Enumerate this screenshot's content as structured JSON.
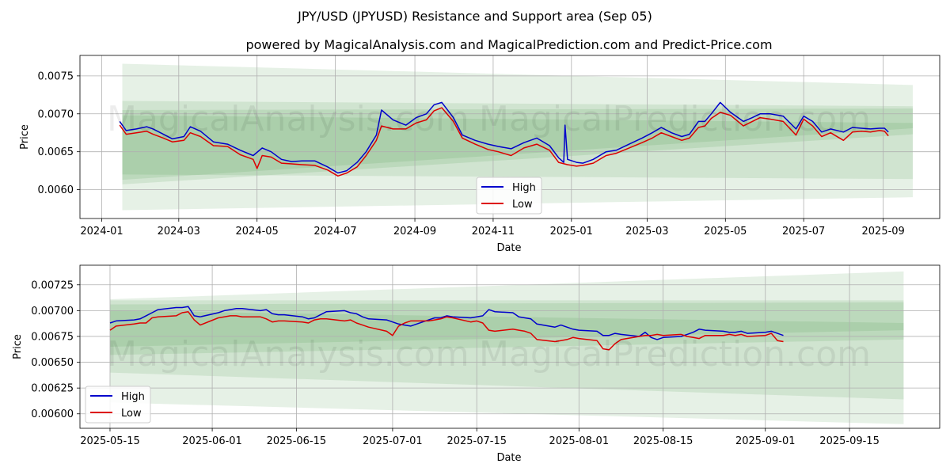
{
  "title": "JPY/USD (JPYUSD) Resistance and Support area (Sep 05)",
  "subtitle": "powered by MagicalAnalysis.com and MagicalPrediction.com and Predict-Price.com",
  "watermarks": [
    "MagicalAnalysis.com",
    "MagicalPrediction.com"
  ],
  "colors": {
    "high": "#0000cc",
    "low": "#dd0000",
    "band": "#2e8b2e"
  },
  "chart_data": [
    {
      "type": "line",
      "name": "top-chart",
      "xlabel": "Date",
      "ylabel": "Price",
      "x_ticks": [
        "2024-01",
        "2024-03",
        "2024-05",
        "2024-07",
        "2024-09",
        "2024-11",
        "2025-01",
        "2025-03",
        "2025-05",
        "2025-07",
        "2025-09"
      ],
      "y_ticks": [
        "0.0060",
        "0.0065",
        "0.0070",
        "0.0075"
      ],
      "xlim": [
        "2023-12-15",
        "2025-10-15"
      ],
      "ylim": [
        0.00562,
        0.00777
      ],
      "legend": {
        "position": "center-bottom",
        "entries": [
          "High",
          "Low"
        ]
      },
      "grid": true,
      "bands": [
        {
          "start": "2024-01-17",
          "end": "2025-09-24",
          "upper": [
            0.00766,
            0.00738
          ],
          "lower": [
            0.00573,
            0.0059
          ]
        },
        {
          "start": "2024-01-17",
          "end": "2025-09-24",
          "upper": [
            0.00717,
            0.0071
          ],
          "lower": [
            0.0062,
            0.00614
          ]
        },
        {
          "start": "2024-01-17",
          "end": "2025-09-24",
          "upper": [
            0.00705,
            0.00707
          ],
          "lower": [
            0.00607,
            0.00673
          ]
        },
        {
          "start": "2024-01-17",
          "end": "2025-09-24",
          "upper": [
            0.00698,
            0.00688
          ],
          "lower": [
            0.00613,
            0.00681
          ]
        }
      ],
      "series": [
        {
          "name": "High",
          "dates": [
            "2024-01-15",
            "2024-01-20",
            "2024-01-28",
            "2024-02-05",
            "2024-02-10",
            "2024-02-18",
            "2024-02-25",
            "2024-03-05",
            "2024-03-10",
            "2024-03-18",
            "2024-03-28",
            "2024-04-08",
            "2024-04-18",
            "2024-04-28",
            "2024-05-05",
            "2024-05-12",
            "2024-05-20",
            "2024-05-28",
            "2024-06-05",
            "2024-06-15",
            "2024-06-25",
            "2024-07-03",
            "2024-07-10",
            "2024-07-18",
            "2024-07-25",
            "2024-08-02",
            "2024-08-06",
            "2024-08-15",
            "2024-08-25",
            "2024-09-02",
            "2024-09-10",
            "2024-09-16",
            "2024-09-22",
            "2024-10-01",
            "2024-10-08",
            "2024-10-18",
            "2024-10-28",
            "2024-11-05",
            "2024-11-15",
            "2024-11-25",
            "2024-12-05",
            "2024-12-15",
            "2024-12-22",
            "2024-12-26",
            "2024-12-27",
            "2024-12-29",
            "2025-01-05",
            "2025-01-10",
            "2025-01-18",
            "2025-01-28",
            "2025-02-05",
            "2025-02-15",
            "2025-02-25",
            "2025-03-05",
            "2025-03-12",
            "2025-03-20",
            "2025-03-28",
            "2025-04-03",
            "2025-04-10",
            "2025-04-15",
            "2025-04-20",
            "2025-04-27",
            "2025-05-05",
            "2025-05-15",
            "2025-05-22",
            "2025-05-28",
            "2025-06-05",
            "2025-06-15",
            "2025-06-25",
            "2025-07-01",
            "2025-07-08",
            "2025-07-15",
            "2025-07-22",
            "2025-08-01",
            "2025-08-08",
            "2025-08-15",
            "2025-08-22",
            "2025-08-29",
            "2025-09-02",
            "2025-09-05"
          ],
          "values": [
            0.0069,
            0.00678,
            0.0068,
            0.00683,
            0.0068,
            0.00673,
            0.00667,
            0.0067,
            0.00683,
            0.00677,
            0.00663,
            0.0066,
            0.00652,
            0.00645,
            0.00655,
            0.0065,
            0.0064,
            0.00637,
            0.00638,
            0.00638,
            0.0063,
            0.00622,
            0.00625,
            0.00636,
            0.0065,
            0.00672,
            0.00705,
            0.00692,
            0.00685,
            0.00695,
            0.007,
            0.00712,
            0.00715,
            0.00695,
            0.00672,
            0.00665,
            0.0066,
            0.00657,
            0.00654,
            0.00662,
            0.00668,
            0.00658,
            0.00642,
            0.00636,
            0.00685,
            0.0064,
            0.00636,
            0.00635,
            0.0064,
            0.0065,
            0.00652,
            0.0066,
            0.00668,
            0.00675,
            0.00682,
            0.00675,
            0.0067,
            0.00673,
            0.0069,
            0.0069,
            0.007,
            0.00715,
            0.00702,
            0.0069,
            0.00695,
            0.007,
            0.007,
            0.00697,
            0.0068,
            0.00697,
            0.0069,
            0.00676,
            0.0068,
            0.00676,
            0.00682,
            0.00681,
            0.0068,
            0.00681,
            0.00681,
            0.00676
          ]
        },
        {
          "name": "Low",
          "dates": [
            "2024-01-15",
            "2024-01-20",
            "2024-01-28",
            "2024-02-05",
            "2024-02-10",
            "2024-02-18",
            "2024-02-25",
            "2024-03-05",
            "2024-03-10",
            "2024-03-18",
            "2024-03-28",
            "2024-04-08",
            "2024-04-18",
            "2024-04-28",
            "2024-05-01",
            "2024-05-05",
            "2024-05-12",
            "2024-05-20",
            "2024-05-28",
            "2024-06-05",
            "2024-06-15",
            "2024-06-25",
            "2024-07-03",
            "2024-07-10",
            "2024-07-18",
            "2024-07-25",
            "2024-08-02",
            "2024-08-06",
            "2024-08-15",
            "2024-08-25",
            "2024-09-02",
            "2024-09-10",
            "2024-09-16",
            "2024-09-22",
            "2024-10-01",
            "2024-10-08",
            "2024-10-18",
            "2024-10-28",
            "2024-11-05",
            "2024-11-15",
            "2024-11-25",
            "2024-12-05",
            "2024-12-15",
            "2024-12-22",
            "2024-12-29",
            "2025-01-05",
            "2025-01-10",
            "2025-01-18",
            "2025-01-28",
            "2025-02-05",
            "2025-02-15",
            "2025-02-25",
            "2025-03-05",
            "2025-03-12",
            "2025-03-20",
            "2025-03-28",
            "2025-04-03",
            "2025-04-10",
            "2025-04-15",
            "2025-04-20",
            "2025-04-27",
            "2025-05-05",
            "2025-05-15",
            "2025-05-22",
            "2025-05-28",
            "2025-06-05",
            "2025-06-15",
            "2025-06-25",
            "2025-07-01",
            "2025-07-08",
            "2025-07-15",
            "2025-07-22",
            "2025-08-01",
            "2025-08-08",
            "2025-08-15",
            "2025-08-22",
            "2025-08-29",
            "2025-09-02",
            "2025-09-05"
          ],
          "values": [
            0.00685,
            0.00673,
            0.00675,
            0.00677,
            0.00673,
            0.00668,
            0.00663,
            0.00665,
            0.00675,
            0.0067,
            0.00658,
            0.00657,
            0.00646,
            0.0064,
            0.00628,
            0.00645,
            0.00643,
            0.00635,
            0.00634,
            0.00633,
            0.00632,
            0.00626,
            0.00618,
            0.00622,
            0.0063,
            0.00645,
            0.00665,
            0.00684,
            0.0068,
            0.0068,
            0.00688,
            0.00692,
            0.00704,
            0.00708,
            0.0069,
            0.00668,
            0.0066,
            0.00653,
            0.0065,
            0.00645,
            0.00655,
            0.0066,
            0.00652,
            0.00636,
            0.00633,
            0.00631,
            0.00632,
            0.00635,
            0.00645,
            0.00648,
            0.00655,
            0.00662,
            0.00668,
            0.00675,
            0.0067,
            0.00665,
            0.00668,
            0.00682,
            0.00684,
            0.00694,
            0.00702,
            0.00698,
            0.00684,
            0.0069,
            0.00695,
            0.00693,
            0.0069,
            0.00672,
            0.00693,
            0.00684,
            0.0067,
            0.00675,
            0.00665,
            0.00676,
            0.00677,
            0.00676,
            0.00678,
            0.00677,
            0.00671
          ]
        }
      ]
    },
    {
      "type": "line",
      "name": "bottom-chart",
      "xlabel": "Date",
      "ylabel": "Price",
      "x_ticks": [
        "2025-05-15",
        "2025-06-01",
        "2025-06-15",
        "2025-07-01",
        "2025-07-15",
        "2025-08-01",
        "2025-08-15",
        "2025-09-01",
        "2025-09-15"
      ],
      "y_ticks": [
        "0.00600",
        "0.00625",
        "0.00650",
        "0.00675",
        "0.00700",
        "0.00725"
      ],
      "xlim": [
        "2025-05-10",
        "2025-09-30"
      ],
      "ylim": [
        0.00586,
        0.00744
      ],
      "legend": {
        "position": "lower-left",
        "entries": [
          "High",
          "Low"
        ]
      },
      "grid": true,
      "bands": [
        {
          "start": "2025-05-15",
          "end": "2025-09-24",
          "upper": [
            0.00711,
            0.00738
          ],
          "lower": [
            0.00611,
            0.0059
          ]
        },
        {
          "start": "2025-05-15",
          "end": "2025-09-24",
          "upper": [
            0.0071,
            0.0071
          ],
          "lower": [
            0.0064,
            0.00614
          ]
        },
        {
          "start": "2025-05-15",
          "end": "2025-09-24",
          "upper": [
            0.00706,
            0.00708
          ],
          "lower": [
            0.00657,
            0.00672
          ]
        },
        {
          "start": "2025-05-15",
          "end": "2025-09-24",
          "upper": [
            0.007,
            0.00688
          ],
          "lower": [
            0.00665,
            0.00681
          ]
        }
      ],
      "series": [
        {
          "name": "High",
          "dates": [
            "2025-05-15",
            "2025-05-16",
            "2025-05-19",
            "2025-05-20",
            "2025-05-21",
            "2025-05-22",
            "2025-05-23",
            "2025-05-26",
            "2025-05-27",
            "2025-05-28",
            "2025-05-29",
            "2025-05-30",
            "2025-06-02",
            "2025-06-03",
            "2025-06-04",
            "2025-06-05",
            "2025-06-06",
            "2025-06-09",
            "2025-06-10",
            "2025-06-11",
            "2025-06-12",
            "2025-06-13",
            "2025-06-16",
            "2025-06-17",
            "2025-06-18",
            "2025-06-19",
            "2025-06-20",
            "2025-06-23",
            "2025-06-24",
            "2025-06-25",
            "2025-06-26",
            "2025-06-27",
            "2025-06-30",
            "2025-07-01",
            "2025-07-02",
            "2025-07-03",
            "2025-07-04",
            "2025-07-07",
            "2025-07-08",
            "2025-07-09",
            "2025-07-10",
            "2025-07-11",
            "2025-07-14",
            "2025-07-15",
            "2025-07-16",
            "2025-07-17",
            "2025-07-18",
            "2025-07-21",
            "2025-07-22",
            "2025-07-23",
            "2025-07-24",
            "2025-07-25",
            "2025-07-28",
            "2025-07-29",
            "2025-07-30",
            "2025-07-31",
            "2025-08-01",
            "2025-08-04",
            "2025-08-05",
            "2025-08-06",
            "2025-08-07",
            "2025-08-08",
            "2025-08-11",
            "2025-08-12",
            "2025-08-13",
            "2025-08-14",
            "2025-08-15",
            "2025-08-18",
            "2025-08-19",
            "2025-08-20",
            "2025-08-21",
            "2025-08-22",
            "2025-08-25",
            "2025-08-26",
            "2025-08-27",
            "2025-08-28",
            "2025-08-29",
            "2025-09-01",
            "2025-09-02",
            "2025-09-03",
            "2025-09-04"
          ],
          "values": [
            0.00688,
            0.0069,
            0.00691,
            0.00692,
            0.00695,
            0.00698,
            0.00701,
            0.00703,
            0.00703,
            0.00704,
            0.00695,
            0.00694,
            0.00698,
            0.007,
            0.00701,
            0.00702,
            0.00702,
            0.007,
            0.00701,
            0.00697,
            0.00696,
            0.00696,
            0.00694,
            0.00692,
            0.00693,
            0.00696,
            0.00699,
            0.007,
            0.00698,
            0.00697,
            0.00694,
            0.00692,
            0.00691,
            0.00689,
            0.00687,
            0.00686,
            0.00685,
            0.00691,
            0.00693,
            0.00693,
            0.00695,
            0.00694,
            0.00693,
            0.00694,
            0.00695,
            0.00701,
            0.00699,
            0.00698,
            0.00694,
            0.00693,
            0.00692,
            0.00687,
            0.00684,
            0.00686,
            0.00684,
            0.00682,
            0.00681,
            0.0068,
            0.00676,
            0.00676,
            0.00678,
            0.00677,
            0.00675,
            0.00679,
            0.00674,
            0.00672,
            0.00674,
            0.00675,
            0.00677,
            0.00679,
            0.00682,
            0.00681,
            0.0068,
            0.00679,
            0.00679,
            0.0068,
            0.00678,
            0.00679,
            0.0068,
            0.00678,
            0.00676
          ]
        },
        {
          "name": "Low",
          "dates": [
            "2025-05-15",
            "2025-05-16",
            "2025-05-19",
            "2025-05-20",
            "2025-05-21",
            "2025-05-22",
            "2025-05-23",
            "2025-05-26",
            "2025-05-27",
            "2025-05-28",
            "2025-05-29",
            "2025-05-30",
            "2025-06-02",
            "2025-06-03",
            "2025-06-04",
            "2025-06-05",
            "2025-06-06",
            "2025-06-09",
            "2025-06-10",
            "2025-06-11",
            "2025-06-12",
            "2025-06-13",
            "2025-06-16",
            "2025-06-17",
            "2025-06-18",
            "2025-06-19",
            "2025-06-20",
            "2025-06-23",
            "2025-06-24",
            "2025-06-25",
            "2025-06-26",
            "2025-06-27",
            "2025-06-30",
            "2025-07-01",
            "2025-07-02",
            "2025-07-03",
            "2025-07-04",
            "2025-07-07",
            "2025-07-08",
            "2025-07-09",
            "2025-07-10",
            "2025-07-11",
            "2025-07-14",
            "2025-07-15",
            "2025-07-16",
            "2025-07-17",
            "2025-07-18",
            "2025-07-21",
            "2025-07-22",
            "2025-07-23",
            "2025-07-24",
            "2025-07-25",
            "2025-07-28",
            "2025-07-29",
            "2025-07-30",
            "2025-07-31",
            "2025-08-01",
            "2025-08-04",
            "2025-08-05",
            "2025-08-06",
            "2025-08-07",
            "2025-08-08",
            "2025-08-11",
            "2025-08-12",
            "2025-08-13",
            "2025-08-14",
            "2025-08-15",
            "2025-08-18",
            "2025-08-19",
            "2025-08-20",
            "2025-08-21",
            "2025-08-22",
            "2025-08-25",
            "2025-08-26",
            "2025-08-27",
            "2025-08-28",
            "2025-08-29",
            "2025-09-01",
            "2025-09-02",
            "2025-09-03",
            "2025-09-04"
          ],
          "values": [
            0.00681,
            0.00685,
            0.00687,
            0.00688,
            0.00688,
            0.00693,
            0.00694,
            0.00695,
            0.00698,
            0.00699,
            0.00691,
            0.00686,
            0.00693,
            0.00694,
            0.00695,
            0.00695,
            0.00694,
            0.00694,
            0.00692,
            0.00689,
            0.0069,
            0.0069,
            0.00689,
            0.00688,
            0.00691,
            0.00692,
            0.00692,
            0.0069,
            0.00691,
            0.00688,
            0.00686,
            0.00684,
            0.0068,
            0.00676,
            0.00685,
            0.00688,
            0.0069,
            0.0069,
            0.00691,
            0.00692,
            0.00694,
            0.00693,
            0.00689,
            0.0069,
            0.00688,
            0.00681,
            0.0068,
            0.00682,
            0.00681,
            0.0068,
            0.00678,
            0.00672,
            0.0067,
            0.00671,
            0.00672,
            0.00674,
            0.00673,
            0.00671,
            0.00663,
            0.00662,
            0.00668,
            0.00672,
            0.00675,
            0.00676,
            0.00676,
            0.00677,
            0.00676,
            0.00677,
            0.00675,
            0.00674,
            0.00673,
            0.00676,
            0.00676,
            0.00677,
            0.00676,
            0.00677,
            0.00675,
            0.00676,
            0.00678,
            0.00671,
            0.0067
          ]
        }
      ]
    }
  ]
}
